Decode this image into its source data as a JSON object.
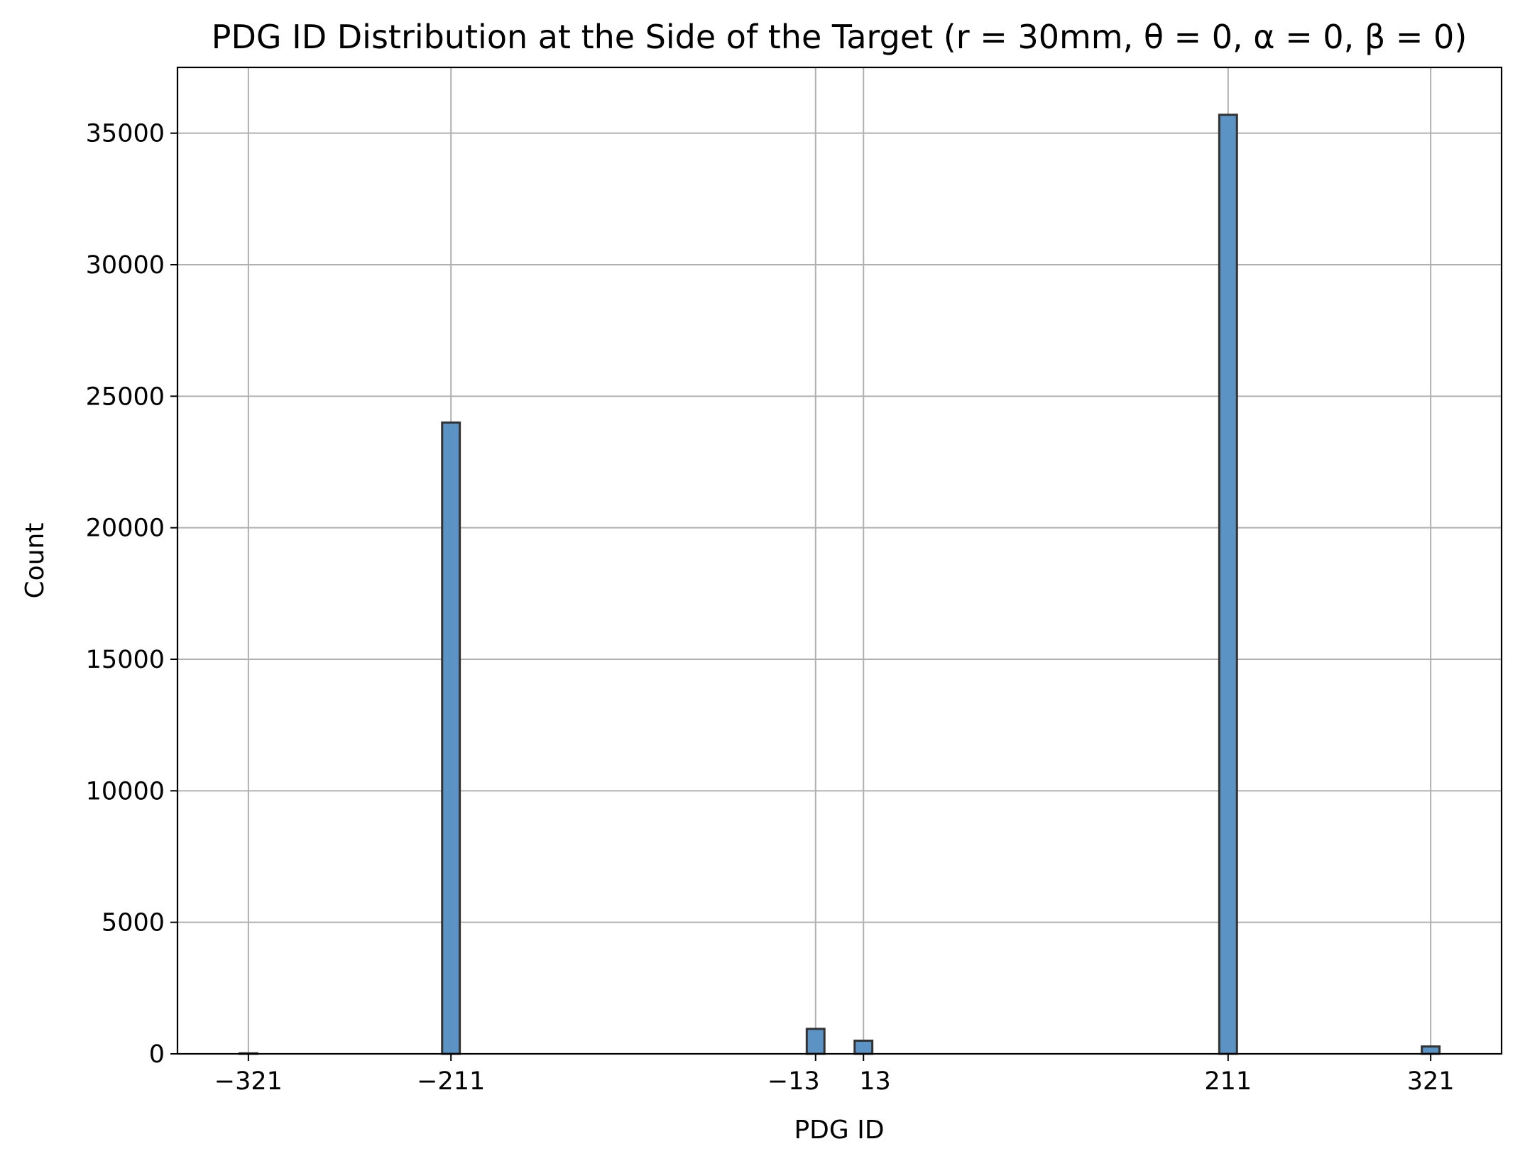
{
  "chart_data": {
    "type": "bar",
    "title": "PDG ID Distribution at the Side of the Target (r = 30mm, θ = 0, α = 0, β = 0)",
    "xlabel": "PDG ID",
    "ylabel": "Count",
    "x_ticks": [
      {
        "value": -321,
        "label": "−321"
      },
      {
        "value": -211,
        "label": "−211"
      },
      {
        "value": -13,
        "label": "−13"
      },
      {
        "value": 13,
        "label": "13"
      },
      {
        "value": 211,
        "label": "211"
      },
      {
        "value": 321,
        "label": "321"
      }
    ],
    "y_ticks": [
      {
        "value": 0,
        "label": "0"
      },
      {
        "value": 5000,
        "label": "5000"
      },
      {
        "value": 10000,
        "label": "10000"
      },
      {
        "value": 15000,
        "label": "15000"
      },
      {
        "value": 20000,
        "label": "20000"
      },
      {
        "value": 25000,
        "label": "25000"
      },
      {
        "value": 30000,
        "label": "30000"
      },
      {
        "value": 35000,
        "label": "35000"
      }
    ],
    "xlim": [
      -359.5,
      359.5
    ],
    "ylim": [
      0,
      37500
    ],
    "bars": [
      {
        "x": -321,
        "value": 20
      },
      {
        "x": -211,
        "value": 24000
      },
      {
        "x": -13,
        "value": 950
      },
      {
        "x": 13,
        "value": 500
      },
      {
        "x": 211,
        "value": 35700
      },
      {
        "x": 321,
        "value": 280
      }
    ],
    "bar_width_units": 9.6,
    "grid": true,
    "bar_color": "#5b93c4",
    "bar_edge_color": "#333333"
  }
}
